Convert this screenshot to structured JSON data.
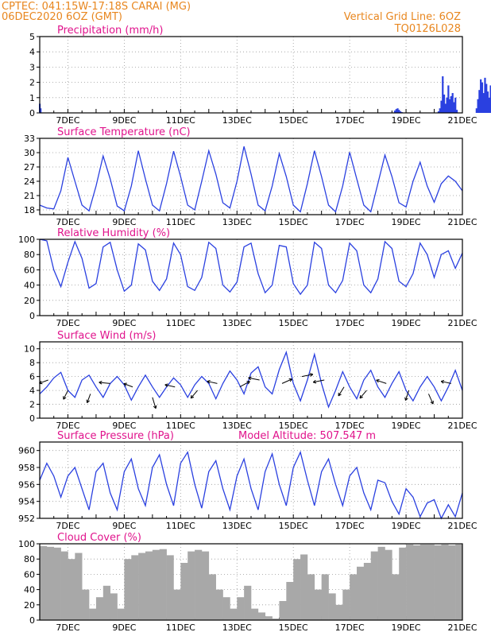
{
  "header": {
    "line1": "CPTEC:   041:15W-17:18S   CARAI (MG)",
    "line2": "06DEC2020 6OZ (GMT)",
    "right1": "Vertical Grid Line: 6OZ",
    "right2": "TQ0126L028",
    "model_altitude": "Model Altitude: 507.547 m"
  },
  "x_tick_labels": [
    "7DEC",
    "9DEC",
    "11DEC",
    "13DEC",
    "15DEC",
    "17DEC",
    "19DEC",
    "21DEC"
  ],
  "colors": {
    "series": "#2a40e0",
    "cloud": "#a8a8a8",
    "header": "#e8861e",
    "title": "#e0138c"
  },
  "chart_data": [
    {
      "id": "precip",
      "type": "bar",
      "title": "Precipitation (mm/h)",
      "ylim": [
        0,
        5
      ],
      "yticks": [
        0,
        1,
        2,
        3,
        4,
        5
      ],
      "grid": true,
      "x": [
        0.0,
        0.03,
        12.6,
        12.65,
        12.7,
        12.75,
        12.8,
        12.85,
        14.15,
        14.2,
        14.25,
        14.3,
        14.35,
        14.4,
        14.45,
        14.5,
        14.55,
        14.6,
        14.65,
        14.7,
        14.75,
        14.8,
        15.5,
        15.55,
        15.6,
        15.65,
        15.7,
        15.75,
        15.8,
        15.85,
        15.9,
        15.95,
        16.0,
        16.05,
        16.1,
        16.15,
        16.2,
        16.25
      ],
      "values": [
        0.6,
        0.3,
        0.15,
        0.25,
        0.3,
        0.2,
        0.1,
        0.05,
        0.1,
        0.3,
        0.8,
        2.4,
        1.2,
        0.6,
        1.0,
        1.8,
        0.9,
        1.1,
        1.3,
        0.7,
        1.0,
        0.2,
        0.3,
        0.9,
        1.5,
        2.2,
        2.0,
        1.3,
        2.3,
        1.9,
        1.4,
        1.0,
        1.8,
        1.2,
        0.8,
        1.5,
        0.9,
        0.4
      ]
    },
    {
      "id": "temp",
      "type": "line",
      "title": "Surface Temperature (nC)",
      "ylim": [
        17,
        33
      ],
      "yticks": [
        18,
        21,
        24,
        27,
        30,
        33
      ],
      "grid": true,
      "x": [
        0.0,
        0.25,
        0.5,
        0.75,
        1.0,
        1.25,
        1.5,
        1.75,
        2.0,
        2.25,
        2.5,
        2.75,
        3.0,
        3.25,
        3.5,
        3.75,
        4.0,
        4.25,
        4.5,
        4.75,
        5.0,
        5.25,
        5.5,
        5.75,
        6.0,
        6.25,
        6.5,
        6.75,
        7.0,
        7.25,
        7.5,
        7.75,
        8.0,
        8.25,
        8.5,
        8.75,
        9.0,
        9.25,
        9.5,
        9.75,
        10.0,
        10.25,
        10.5,
        10.75,
        11.0,
        11.25,
        11.5,
        11.75,
        12.0,
        12.25,
        12.5,
        12.75,
        13.0,
        13.25,
        13.5,
        13.75,
        14.0,
        14.25,
        14.5,
        14.75,
        15.0
      ],
      "values": [
        19.0,
        18.4,
        18.2,
        22.0,
        29.0,
        24.0,
        19.0,
        17.8,
        23.0,
        29.3,
        24.5,
        18.8,
        17.8,
        23.0,
        30.4,
        24.5,
        19.0,
        17.8,
        23.5,
        30.3,
        25.0,
        19.0,
        18.0,
        24.0,
        30.4,
        25.5,
        19.5,
        18.4,
        24.0,
        31.3,
        25.5,
        19.0,
        17.8,
        23.0,
        29.8,
        25.0,
        19.0,
        17.6,
        23.5,
        30.4,
        25.0,
        19.0,
        17.6,
        23.0,
        30.1,
        24.5,
        19.0,
        17.6,
        23.5,
        29.5,
        25.0,
        19.5,
        18.6,
        24.0,
        28.0,
        23.0,
        19.6,
        23.5,
        25.1,
        24.0,
        22.0
      ]
    },
    {
      "id": "humidity",
      "type": "line",
      "title": "Relative Humidity (%)",
      "ylim": [
        0,
        100
      ],
      "yticks": [
        0,
        20,
        40,
        60,
        80,
        100
      ],
      "grid": true,
      "x": [
        0.0,
        0.25,
        0.5,
        0.75,
        1.0,
        1.25,
        1.5,
        1.75,
        2.0,
        2.25,
        2.5,
        2.75,
        3.0,
        3.25,
        3.5,
        3.75,
        4.0,
        4.25,
        4.5,
        4.75,
        5.0,
        5.25,
        5.5,
        5.75,
        6.0,
        6.25,
        6.5,
        6.75,
        7.0,
        7.25,
        7.5,
        7.75,
        8.0,
        8.25,
        8.5,
        8.75,
        9.0,
        9.25,
        9.5,
        9.75,
        10.0,
        10.25,
        10.5,
        10.75,
        11.0,
        11.25,
        11.5,
        11.75,
        12.0,
        12.25,
        12.5,
        12.75,
        13.0,
        13.25,
        13.5,
        13.75,
        14.0,
        14.25,
        14.5,
        14.75,
        15.0
      ],
      "values": [
        100,
        98,
        60,
        38,
        70,
        97,
        75,
        36,
        42,
        90,
        96,
        60,
        32,
        40,
        94,
        86,
        45,
        33,
        48,
        95,
        80,
        38,
        33,
        50,
        96,
        88,
        40,
        31,
        44,
        90,
        95,
        55,
        30,
        40,
        92,
        90,
        42,
        28,
        40,
        96,
        88,
        40,
        30,
        46,
        95,
        85,
        40,
        30,
        48,
        97,
        88,
        45,
        38,
        55,
        95,
        80,
        50,
        80,
        85,
        62,
        82
      ]
    },
    {
      "id": "wind",
      "type": "line",
      "title": "Surface Wind (m/s)",
      "ylim": [
        0,
        11
      ],
      "yticks": [
        0,
        2,
        4,
        6,
        8,
        10
      ],
      "grid": true,
      "x": [
        0.0,
        0.25,
        0.5,
        0.75,
        1.0,
        1.25,
        1.5,
        1.75,
        2.0,
        2.25,
        2.5,
        2.75,
        3.0,
        3.25,
        3.5,
        3.75,
        4.0,
        4.25,
        4.5,
        4.75,
        5.0,
        5.25,
        5.5,
        5.75,
        6.0,
        6.25,
        6.5,
        6.75,
        7.0,
        7.25,
        7.5,
        7.75,
        8.0,
        8.25,
        8.5,
        8.75,
        9.0,
        9.25,
        9.5,
        9.75,
        10.0,
        10.25,
        10.5,
        10.75,
        11.0,
        11.25,
        11.5,
        11.75,
        12.0,
        12.25,
        12.5,
        12.75,
        13.0,
        13.25,
        13.5,
        13.75,
        14.0,
        14.25,
        14.5,
        14.75,
        15.0
      ],
      "values": [
        3.5,
        4.5,
        5.8,
        6.6,
        4.0,
        3.0,
        5.5,
        6.2,
        4.5,
        3.0,
        5.0,
        6.0,
        4.8,
        2.6,
        4.5,
        6.2,
        4.5,
        3.0,
        4.5,
        5.8,
        4.8,
        3.0,
        4.8,
        6.0,
        5.0,
        2.8,
        5.0,
        6.8,
        5.5,
        3.5,
        6.5,
        7.4,
        4.5,
        3.5,
        7.0,
        9.5,
        5.0,
        2.5,
        5.5,
        9.2,
        5.0,
        1.6,
        4.0,
        6.7,
        4.5,
        2.8,
        5.5,
        6.9,
        4.5,
        3.0,
        5.0,
        6.7,
        4.0,
        2.5,
        4.5,
        6.0,
        4.5,
        2.5,
        4.5,
        6.9,
        4.0
      ],
      "vectors": {
        "x": [
          0.3,
          1.0,
          1.8,
          2.5,
          3.3,
          4.0,
          4.8,
          5.6,
          6.3,
          7.1,
          7.8,
          8.6,
          9.3,
          10.1,
          10.8,
          11.6,
          12.3,
          13.1,
          13.8,
          14.6
        ],
        "speed": [
          5.5,
          4.0,
          3.5,
          5.0,
          4.5,
          3.0,
          4.5,
          4.0,
          5.0,
          4.5,
          5.5,
          5.0,
          6.0,
          5.5,
          4.5,
          4.0,
          5.0,
          4.0,
          3.5,
          5.0
        ],
        "u": [
          -0.8,
          -0.4,
          -0.3,
          -1.0,
          -0.8,
          0.3,
          -0.9,
          -0.6,
          -0.9,
          0.9,
          -1.0,
          0.9,
          1.0,
          -1.0,
          -0.5,
          -0.6,
          -0.9,
          -0.3,
          0.4,
          -0.9
        ],
        "v": [
          -0.3,
          -0.8,
          -0.8,
          0.1,
          0.3,
          -1.0,
          0.2,
          -0.7,
          0.2,
          0.5,
          0.2,
          0.4,
          0.2,
          -0.2,
          -0.8,
          -0.7,
          0.3,
          -0.9,
          -0.9,
          0.2
        ]
      }
    },
    {
      "id": "pressure",
      "type": "line",
      "title": "Surface Pressure (hPa)",
      "ylim": [
        952,
        961
      ],
      "yticks": [
        952,
        954,
        956,
        958,
        960
      ],
      "grid": true,
      "x": [
        0.0,
        0.25,
        0.5,
        0.75,
        1.0,
        1.25,
        1.5,
        1.75,
        2.0,
        2.25,
        2.5,
        2.75,
        3.0,
        3.25,
        3.5,
        3.75,
        4.0,
        4.25,
        4.5,
        4.75,
        5.0,
        5.25,
        5.5,
        5.75,
        6.0,
        6.25,
        6.5,
        6.75,
        7.0,
        7.25,
        7.5,
        7.75,
        8.0,
        8.25,
        8.5,
        8.75,
        9.0,
        9.25,
        9.5,
        9.75,
        10.0,
        10.25,
        10.5,
        10.75,
        11.0,
        11.25,
        11.5,
        11.75,
        12.0,
        12.25,
        12.5,
        12.75,
        13.0,
        13.25,
        13.5,
        13.75,
        14.0,
        14.25,
        14.5,
        14.75,
        15.0
      ],
      "values": [
        956.5,
        958.5,
        957.0,
        954.5,
        957.0,
        958.0,
        955.5,
        953.0,
        957.5,
        958.5,
        955.0,
        953.0,
        957.5,
        959.0,
        955.5,
        953.5,
        958.0,
        959.5,
        956.0,
        953.5,
        958.5,
        959.8,
        956.0,
        953.2,
        957.5,
        958.8,
        955.5,
        953.0,
        957.0,
        959.0,
        955.5,
        953.0,
        957.5,
        959.6,
        956.0,
        953.5,
        958.0,
        959.8,
        956.5,
        953.5,
        957.5,
        959.0,
        956.0,
        953.5,
        957.0,
        958.0,
        955.0,
        953.0,
        956.5,
        956.2,
        954.0,
        952.5,
        955.5,
        954.5,
        952.2,
        953.8,
        954.2,
        952.0,
        953.6,
        952.2,
        955.0
      ]
    },
    {
      "id": "cloud",
      "type": "bar",
      "title": "Cloud Cover (%)",
      "ylim": [
        0,
        100
      ],
      "yticks": [
        0,
        20,
        40,
        60,
        80,
        100
      ],
      "grid": true,
      "x": [
        0.0,
        0.25,
        0.5,
        0.75,
        1.0,
        1.25,
        1.5,
        1.75,
        2.0,
        2.25,
        2.5,
        2.75,
        3.0,
        3.25,
        3.5,
        3.75,
        4.0,
        4.25,
        4.5,
        4.75,
        5.0,
        5.25,
        5.5,
        5.75,
        6.0,
        6.25,
        6.5,
        6.75,
        7.0,
        7.25,
        7.5,
        7.75,
        8.0,
        8.25,
        8.5,
        8.75,
        9.0,
        9.25,
        9.5,
        9.75,
        10.0,
        10.25,
        10.5,
        10.75,
        11.0,
        11.25,
        11.5,
        11.75,
        12.0,
        12.25,
        12.5,
        12.75,
        13.0,
        13.25,
        13.5,
        13.75,
        14.0,
        14.25,
        14.5,
        14.75
      ],
      "values": [
        97,
        96,
        95,
        90,
        80,
        88,
        40,
        15,
        30,
        45,
        35,
        15,
        80,
        85,
        88,
        90,
        92,
        93,
        85,
        40,
        75,
        90,
        92,
        90,
        60,
        40,
        30,
        15,
        30,
        45,
        15,
        10,
        5,
        2,
        25,
        50,
        80,
        86,
        60,
        40,
        60,
        35,
        20,
        40,
        60,
        70,
        75,
        90,
        96,
        92,
        60,
        95,
        99,
        98,
        99,
        99,
        98,
        99,
        98,
        99
      ]
    }
  ]
}
